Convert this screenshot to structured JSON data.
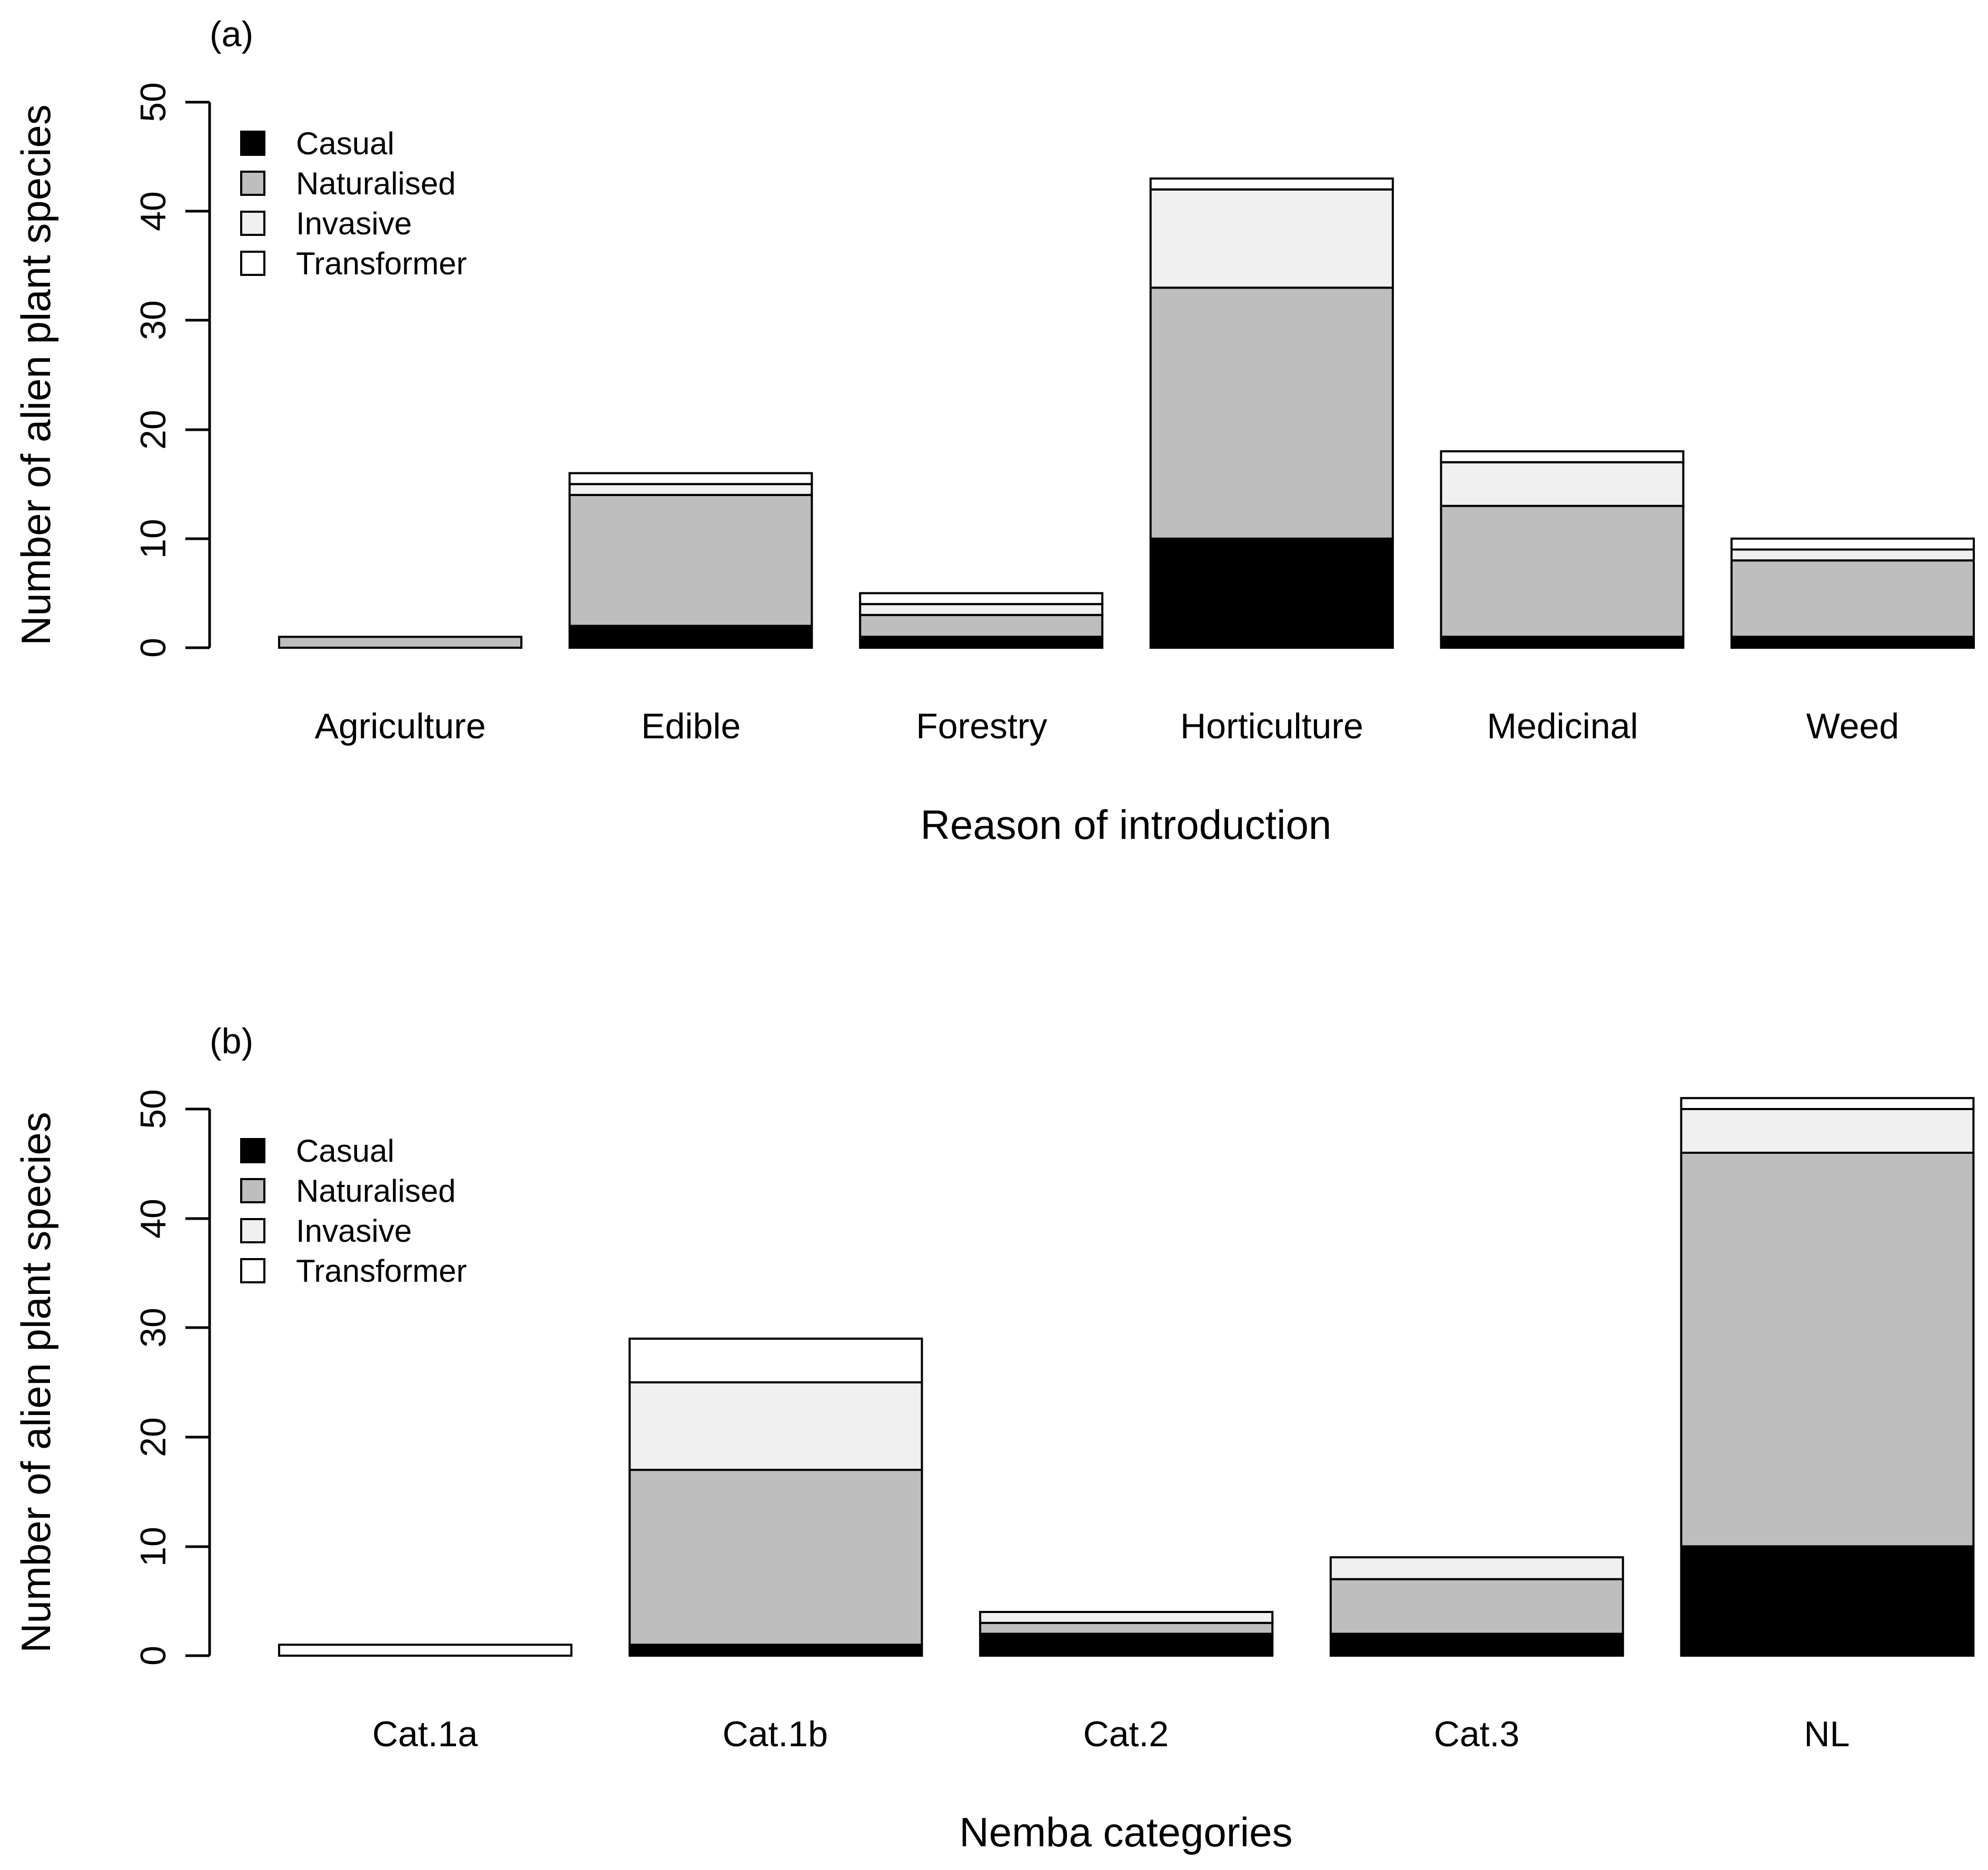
{
  "colors": {
    "Casual": "#000000",
    "Naturalised": "#bebebe",
    "Invasive": "#f0f0f0",
    "Transformer": "#ffffff"
  },
  "chart_data": [
    {
      "type": "bar",
      "stacked": true,
      "panel_label": "(a)",
      "xlabel": "Reason of introduction",
      "ylabel": "Number of alien plant species",
      "ylim": [
        0,
        50
      ],
      "yticks": [
        "0",
        "10",
        "20",
        "30",
        "40",
        "50"
      ],
      "categories": [
        "Agriculture",
        "Edible",
        "Forestry",
        "Horticulture",
        "Medicinal",
        "Weed"
      ],
      "series": [
        {
          "name": "Casual",
          "values": [
            0,
            2,
            1,
            10,
            1,
            1
          ]
        },
        {
          "name": "Naturalised",
          "values": [
            1,
            12,
            2,
            23,
            12,
            7
          ]
        },
        {
          "name": "Invasive",
          "values": [
            0,
            1,
            1,
            9,
            4,
            1
          ]
        },
        {
          "name": "Transformer",
          "values": [
            0,
            1,
            1,
            1,
            1,
            1
          ]
        }
      ],
      "legend": [
        "Casual",
        "Naturalised",
        "Invasive",
        "Transformer"
      ],
      "legend_position": "top-left"
    },
    {
      "type": "bar",
      "stacked": true,
      "panel_label": "(b)",
      "xlabel": "Nemba categories",
      "ylabel": "Number of alien plant species",
      "ylim": [
        0,
        50
      ],
      "yticks": [
        "0",
        "10",
        "20",
        "30",
        "40",
        "50"
      ],
      "categories": [
        "Cat.1a",
        "Cat.1b",
        "Cat.2",
        "Cat.3",
        "NL"
      ],
      "series": [
        {
          "name": "Casual",
          "values": [
            0,
            1,
            2,
            2,
            10
          ]
        },
        {
          "name": "Naturalised",
          "values": [
            0,
            16,
            1,
            5,
            36
          ]
        },
        {
          "name": "Invasive",
          "values": [
            0,
            8,
            1,
            2,
            4
          ]
        },
        {
          "name": "Transformer",
          "values": [
            1,
            4,
            0,
            0,
            1
          ]
        }
      ],
      "legend": [
        "Casual",
        "Naturalised",
        "Invasive",
        "Transformer"
      ],
      "legend_position": "top-left"
    }
  ]
}
